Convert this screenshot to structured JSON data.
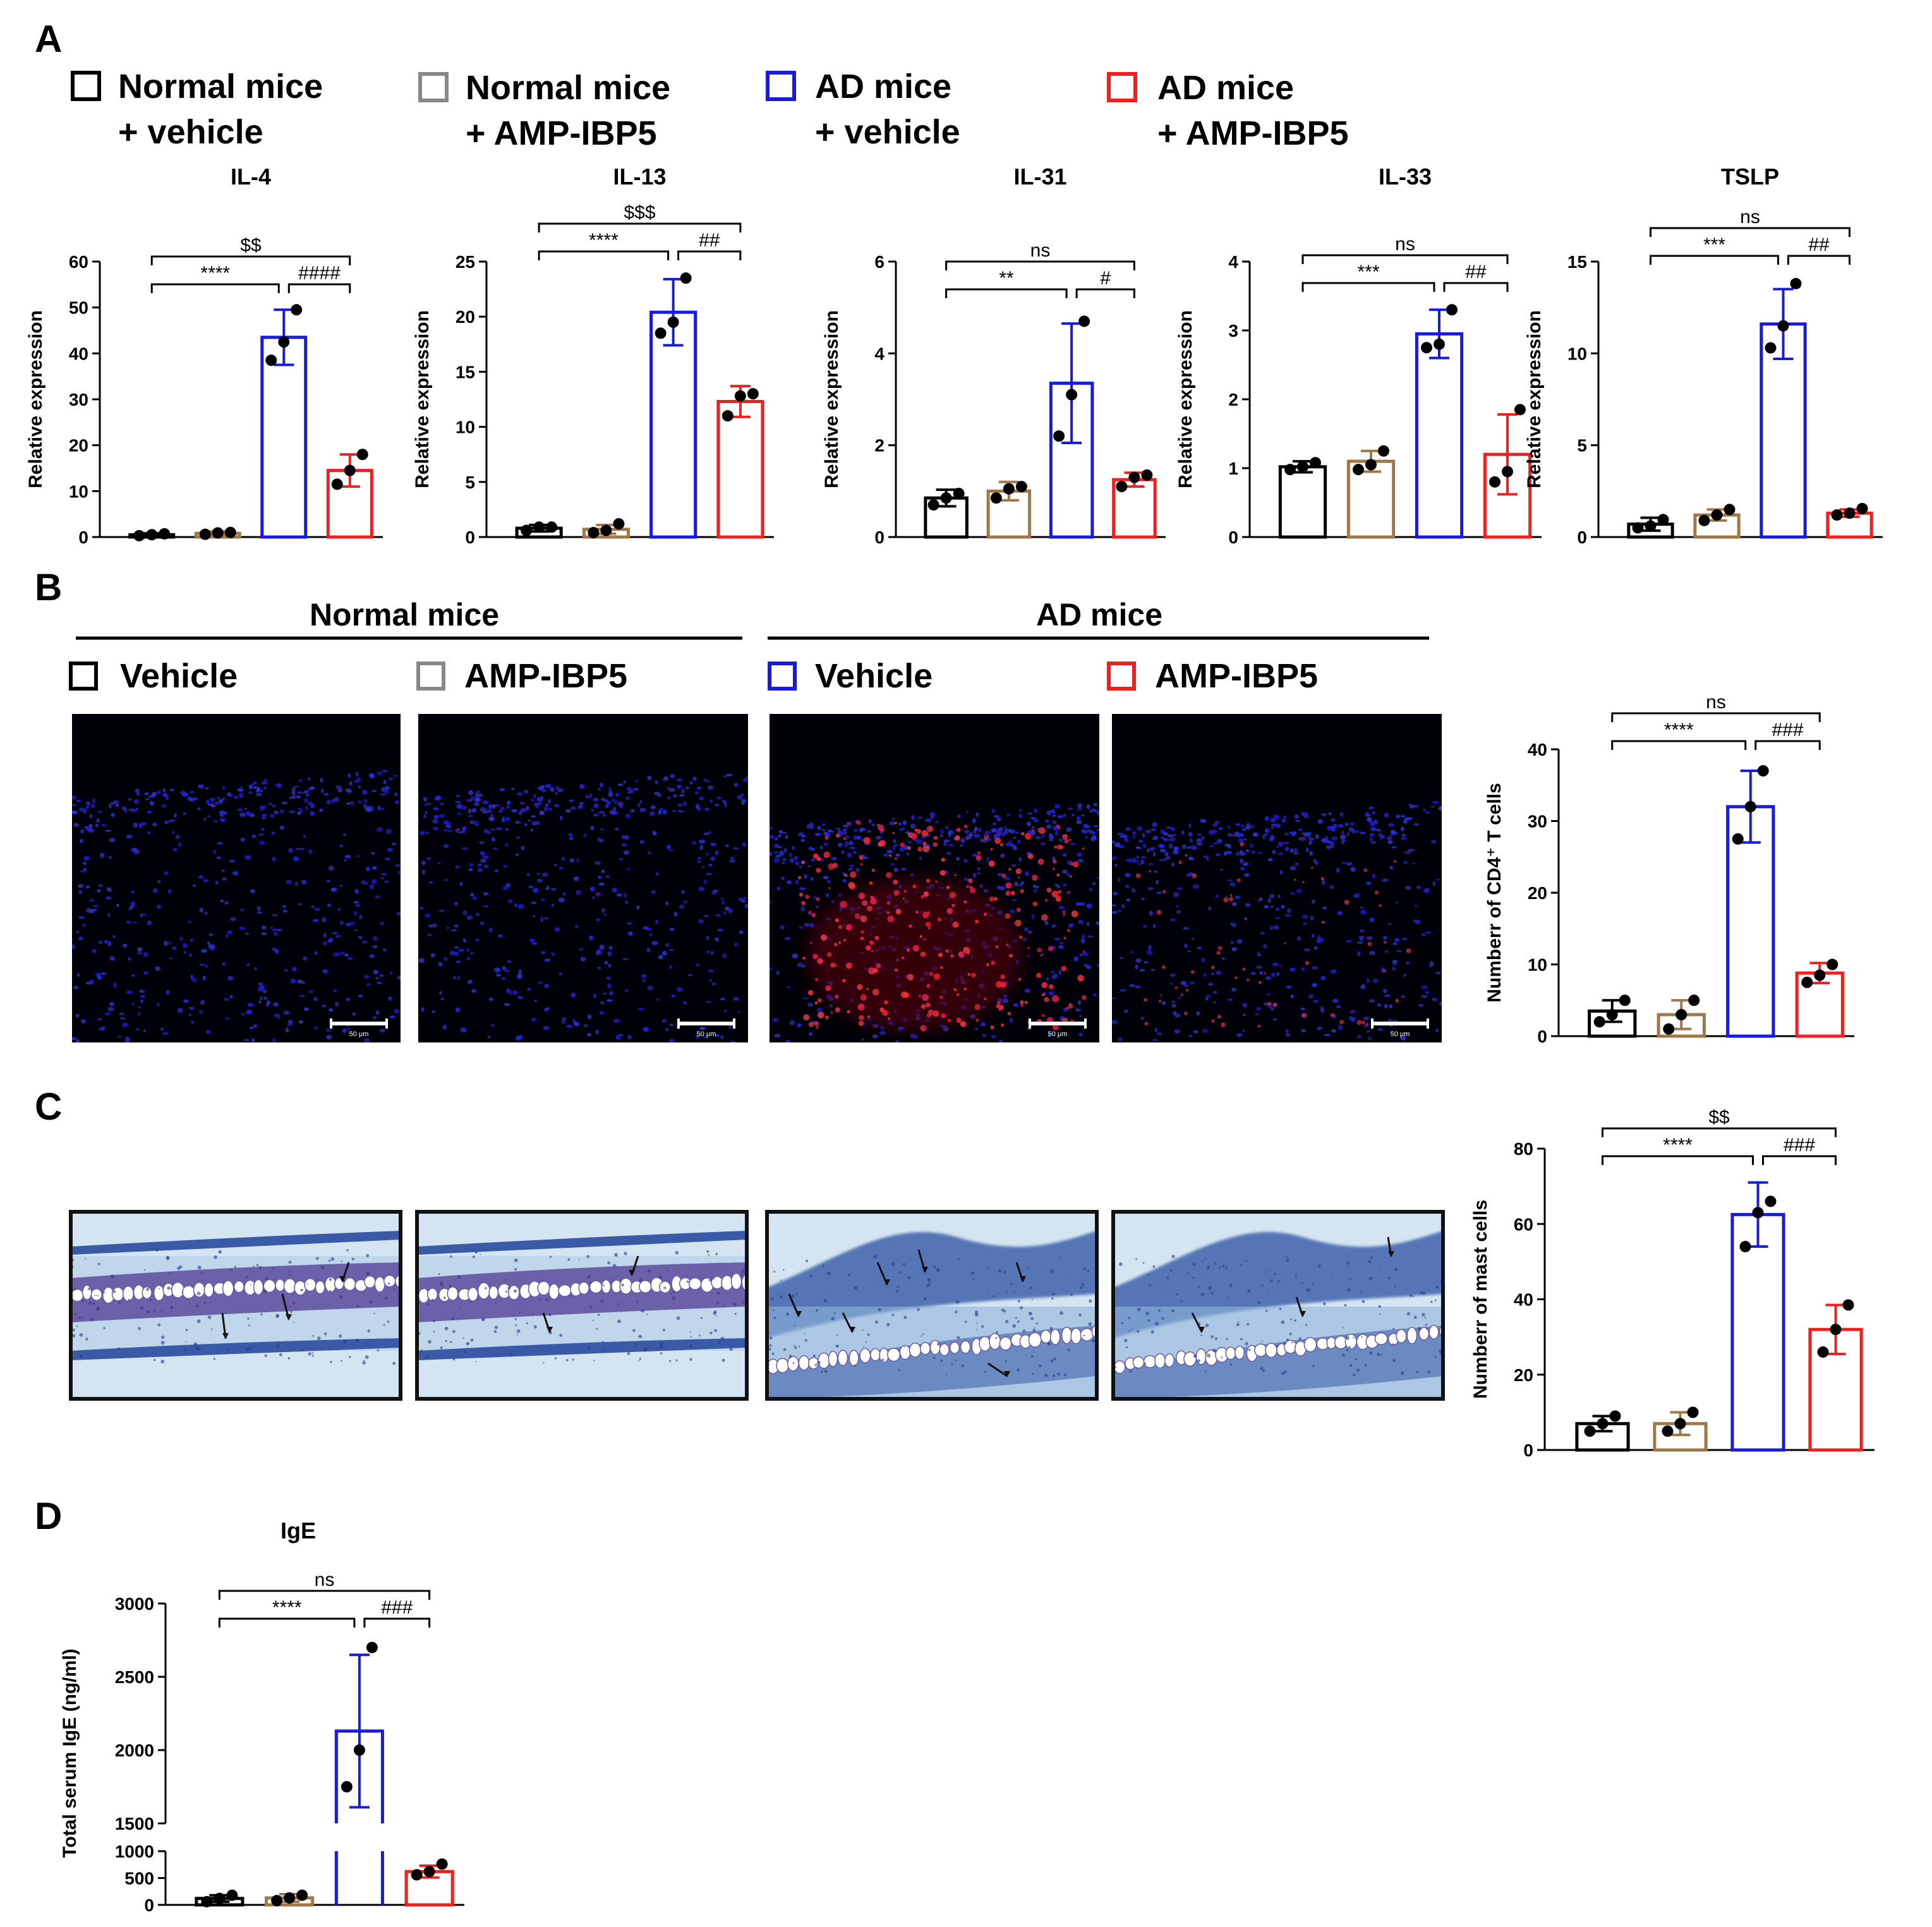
{
  "panels": [
    {
      "label": "A"
    },
    {
      "label": "B"
    },
    {
      "label": "C"
    },
    {
      "label": "D"
    }
  ],
  "legend_top": {
    "items": [
      {
        "line1": "Normal mice",
        "line2": "+ vehicle",
        "color": "#000000"
      },
      {
        "line1": "Normal mice",
        "line2": "+ AMP-IBP5",
        "color": "#888888"
      },
      {
        "line1": "AD mice",
        "line2": "+ vehicle",
        "color": "#1a1adf"
      },
      {
        "line1": "AD mice",
        "line2": "+ AMP-IBP5",
        "color": "#ee2020"
      }
    ]
  },
  "group_headers": [
    {
      "text": "Normal mice"
    },
    {
      "text": "AD mice"
    }
  ],
  "legend_b": {
    "items": [
      {
        "text": "Vehicle",
        "color": "#000000"
      },
      {
        "text": "AMP-IBP5",
        "color": "#888888"
      },
      {
        "text": "Vehicle",
        "color": "#1a1adf"
      },
      {
        "text": "AMP-IBP5",
        "color": "#ee2020"
      }
    ]
  },
  "images": {
    "fluorescence": [
      {
        "scale": "50 μm"
      },
      {
        "scale": "50 μm"
      },
      {
        "scale": "50 μm"
      },
      {
        "scale": "50 μm"
      }
    ],
    "histology_count": 4
  },
  "colors": {
    "bar_edges": [
      "#000000",
      "#a07848",
      "#1a1adf",
      "#ee2020"
    ],
    "fluor_background": "#000008",
    "histo_background": "#d4e4f0"
  },
  "chart_data": [
    {
      "type": "bar",
      "title": "IL-4",
      "ylabel": "Relative expression",
      "ylim": [
        0,
        60
      ],
      "yticks": [
        0,
        10,
        20,
        30,
        40,
        50,
        60
      ],
      "yticklabels": [
        "0",
        "10",
        "20",
        "30",
        "40",
        "50",
        "60"
      ],
      "values": [
        0.5,
        0.8,
        43.5,
        14.5
      ],
      "errors": [
        0.3,
        0.4,
        6.0,
        3.5
      ],
      "points": [
        [
          0.3,
          0.5,
          0.7
        ],
        [
          0.6,
          0.9,
          1.0
        ],
        [
          38.5,
          42.5,
          49.5
        ],
        [
          11.5,
          14.5,
          18
        ]
      ],
      "sig": [
        {
          "from": 0,
          "to": 2,
          "text": "****",
          "level": 1
        },
        {
          "from": 2,
          "to": 3,
          "text": "####",
          "level": 1
        },
        {
          "from": 0,
          "to": 3,
          "text": "$$",
          "level": 2
        }
      ]
    },
    {
      "type": "bar",
      "title": "IL-13",
      "ylabel": "Relative expression",
      "ylim": [
        0,
        25
      ],
      "yticks": [
        0,
        5,
        10,
        15,
        20,
        25
      ],
      "yticklabels": [
        "0",
        "5",
        "10",
        "15",
        "20",
        "25"
      ],
      "values": [
        0.8,
        0.7,
        20.4,
        12.3
      ],
      "errors": [
        0.3,
        0.4,
        3.0,
        1.4
      ],
      "points": [
        [
          0.6,
          0.9,
          0.9
        ],
        [
          0.4,
          0.6,
          1.2
        ],
        [
          18.5,
          19.5,
          23.5
        ],
        [
          11,
          12.8,
          13
        ]
      ],
      "sig": [
        {
          "from": 0,
          "to": 2,
          "text": "****",
          "level": 1
        },
        {
          "from": 2,
          "to": 3,
          "text": "##",
          "level": 1
        },
        {
          "from": 0,
          "to": 3,
          "text": "$$$",
          "level": 2
        }
      ]
    },
    {
      "type": "bar",
      "title": "IL-31",
      "ylabel": "Relative expression",
      "ylim": [
        0,
        6
      ],
      "yticks": [
        0,
        2,
        4,
        6
      ],
      "yticklabels": [
        "0",
        "2",
        "4",
        "6"
      ],
      "values": [
        0.85,
        1.0,
        3.35,
        1.25
      ],
      "errors": [
        0.18,
        0.2,
        1.3,
        0.15
      ],
      "points": [
        [
          0.7,
          0.85,
          0.95
        ],
        [
          0.85,
          1.05,
          1.1
        ],
        [
          2.2,
          3.1,
          4.7
        ],
        [
          1.1,
          1.3,
          1.35
        ]
      ],
      "sig": [
        {
          "from": 0,
          "to": 2,
          "text": "**",
          "level": 1
        },
        {
          "from": 2,
          "to": 3,
          "text": "#",
          "level": 1
        },
        {
          "from": 0,
          "to": 3,
          "text": "ns",
          "level": 2
        }
      ]
    },
    {
      "type": "bar",
      "title": "IL-33",
      "ylabel": "Relative expression",
      "ylim": [
        0,
        4
      ],
      "yticks": [
        0,
        1,
        2,
        3,
        4
      ],
      "yticklabels": [
        "0",
        "1",
        "2",
        "3",
        "4"
      ],
      "values": [
        1.02,
        1.1,
        2.95,
        1.2
      ],
      "errors": [
        0.08,
        0.15,
        0.35,
        0.58
      ],
      "points": [
        [
          0.98,
          1.02,
          1.08
        ],
        [
          0.98,
          1.05,
          1.25
        ],
        [
          2.75,
          2.8,
          3.3
        ],
        [
          0.8,
          0.95,
          1.85
        ]
      ],
      "sig": [
        {
          "from": 0,
          "to": 2,
          "text": "***",
          "level": 1
        },
        {
          "from": 2,
          "to": 3,
          "text": "##",
          "level": 1
        },
        {
          "from": 0,
          "to": 3,
          "text": "ns",
          "level": 2
        }
      ]
    },
    {
      "type": "bar",
      "title": "TSLP",
      "ylabel": "Relative expression",
      "ylim": [
        0,
        15
      ],
      "yticks": [
        0,
        5,
        10,
        15
      ],
      "yticklabels": [
        "0",
        "5",
        "10",
        "15"
      ],
      "values": [
        0.7,
        1.2,
        11.6,
        1.3
      ],
      "errors": [
        0.35,
        0.3,
        1.9,
        0.2
      ],
      "points": [
        [
          0.5,
          0.6,
          0.95
        ],
        [
          0.9,
          1.2,
          1.5
        ],
        [
          10.3,
          11.5,
          13.8
        ],
        [
          1.2,
          1.3,
          1.55
        ]
      ],
      "sig": [
        {
          "from": 0,
          "to": 2,
          "text": "***",
          "level": 1
        },
        {
          "from": 2,
          "to": 3,
          "text": "##",
          "level": 1
        },
        {
          "from": 0,
          "to": 3,
          "text": "ns",
          "level": 2
        }
      ]
    },
    {
      "type": "bar",
      "title": "",
      "ylabel": "Numberr of CD4⁺ T cells",
      "ylim": [
        0,
        40
      ],
      "yticks": [
        0,
        10,
        20,
        30,
        40
      ],
      "yticklabels": [
        "0",
        "10",
        "20",
        "30",
        "40"
      ],
      "values": [
        3.5,
        3.0,
        32.0,
        8.8
      ],
      "errors": [
        1.5,
        2.0,
        5.0,
        1.4
      ],
      "points": [
        [
          2.0,
          3.0,
          5.0
        ],
        [
          1.0,
          3.0,
          5.0
        ],
        [
          27.5,
          32.0,
          37.0
        ],
        [
          7.5,
          8.5,
          10.0
        ]
      ],
      "sig": [
        {
          "from": 0,
          "to": 2,
          "text": "****",
          "level": 1
        },
        {
          "from": 2,
          "to": 3,
          "text": "###",
          "level": 1
        },
        {
          "from": 0,
          "to": 3,
          "text": "ns",
          "level": 2
        }
      ]
    },
    {
      "type": "bar",
      "title": "",
      "ylabel": "Numberr of mast cells",
      "ylim": [
        0,
        80
      ],
      "yticks": [
        0,
        20,
        40,
        60,
        80
      ],
      "yticklabels": [
        "0",
        "20",
        "40",
        "60",
        "80"
      ],
      "values": [
        7.0,
        7.0,
        62.5,
        32.0
      ],
      "errors": [
        2.0,
        3.0,
        8.5,
        6.5
      ],
      "points": [
        [
          5.0,
          7.0,
          9.0
        ],
        [
          5.0,
          7.0,
          10.0
        ],
        [
          54.0,
          63.0,
          66.0
        ],
        [
          26.0,
          32.0,
          38.5
        ]
      ],
      "sig": [
        {
          "from": 0,
          "to": 2,
          "text": "****",
          "level": 1
        },
        {
          "from": 2,
          "to": 3,
          "text": "###",
          "level": 1
        },
        {
          "from": 0,
          "to": 3,
          "text": "$$",
          "level": 2
        }
      ]
    },
    {
      "type": "bar",
      "title": "IgE",
      "ylabel": "Total serum IgE (ng/ml)",
      "broken_axis": true,
      "ylim_lower": [
        0,
        1000
      ],
      "ylim_upper": [
        1500,
        3000
      ],
      "yticks_lower": [
        0,
        500,
        1000
      ],
      "yticklabels_lower": [
        "0",
        "500",
        "1000"
      ],
      "yticks_upper": [
        1500,
        2000,
        2500,
        3000
      ],
      "yticklabels_upper": [
        "1500",
        "2000",
        "2500",
        "3000"
      ],
      "values": [
        120,
        130,
        2130,
        620
      ],
      "errors": [
        60,
        70,
        520,
        110
      ],
      "points": [
        [
          60,
          120,
          180
        ],
        [
          80,
          130,
          180
        ],
        [
          1750,
          2000,
          2700
        ],
        [
          560,
          620,
          760
        ]
      ],
      "sig": [
        {
          "from": 0,
          "to": 2,
          "text": "****",
          "level": 1
        },
        {
          "from": 2,
          "to": 3,
          "text": "###",
          "level": 1
        },
        {
          "from": 0,
          "to": 3,
          "text": "ns",
          "level": 2
        }
      ]
    }
  ]
}
